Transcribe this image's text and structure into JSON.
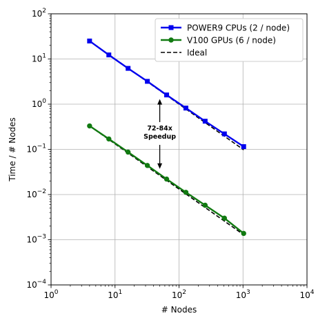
{
  "chart_data": {
    "type": "line",
    "xlabel": "# Nodes",
    "ylabel": "Time / # Nodes",
    "xscale": "log",
    "yscale": "log",
    "xlim": [
      1,
      10000
    ],
    "ylim": [
      0.0001,
      100
    ],
    "grid": true,
    "legend_position": "top-right",
    "x_ticks": [
      {
        "base": "10",
        "exp": "0",
        "value": 1
      },
      {
        "base": "10",
        "exp": "1",
        "value": 10
      },
      {
        "base": "10",
        "exp": "2",
        "value": 100
      },
      {
        "base": "10",
        "exp": "3",
        "value": 1000
      },
      {
        "base": "10",
        "exp": "4",
        "value": 10000
      }
    ],
    "y_ticks": [
      {
        "base": "10",
        "exp": "−4",
        "value": 0.0001
      },
      {
        "base": "10",
        "exp": "−3",
        "value": 0.001
      },
      {
        "base": "10",
        "exp": "−2",
        "value": 0.01
      },
      {
        "base": "10",
        "exp": "−1",
        "value": 0.1
      },
      {
        "base": "10",
        "exp": "0",
        "value": 1
      },
      {
        "base": "10",
        "exp": "1",
        "value": 10
      },
      {
        "base": "10",
        "exp": "2",
        "value": 100
      }
    ],
    "series": [
      {
        "name": "POWER9 CPUs (2 / node)",
        "color": "#0000ee",
        "marker": "square",
        "style": "solid",
        "x": [
          4,
          8,
          16,
          32,
          64,
          128,
          256,
          512,
          1024
        ],
        "y": [
          25,
          12.3,
          6.2,
          3.2,
          1.6,
          0.82,
          0.42,
          0.22,
          0.115
        ]
      },
      {
        "name": "V100 GPUs (6 / node)",
        "color": "#117a11",
        "marker": "circle",
        "style": "solid",
        "x": [
          4,
          8,
          16,
          32,
          64,
          128,
          256,
          512,
          1024
        ],
        "y": [
          0.33,
          0.17,
          0.087,
          0.044,
          0.022,
          0.0112,
          0.0058,
          0.003,
          0.00138
        ]
      },
      {
        "name": "Ideal",
        "color": "#000000",
        "style": "dashed",
        "marker": "none",
        "ideal_lines": [
          {
            "x": [
              4,
              1024
            ],
            "y": [
              25,
              0.0977
            ]
          },
          {
            "x": [
              4,
              1024
            ],
            "y": [
              0.33,
              0.00129
            ]
          }
        ]
      }
    ],
    "annotation": {
      "lines": [
        "72-84x",
        "Speedup"
      ],
      "x": 50,
      "arrow_up_to_y": 1.6,
      "arrow_down_to_y": 0.03
    }
  }
}
